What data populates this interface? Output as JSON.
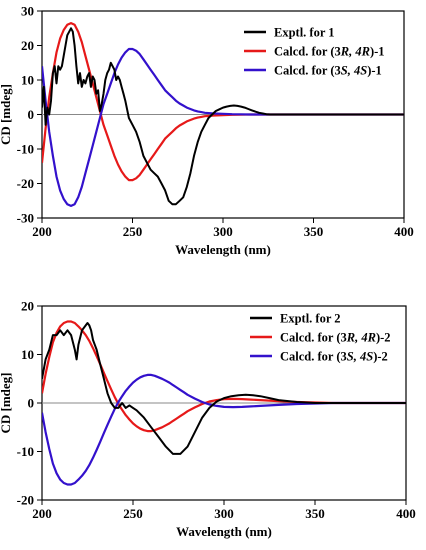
{
  "chart_data": [
    {
      "type": "line",
      "xlabel": "Wavelength (nm)",
      "ylabel": "CD [mdeg]",
      "xlim": [
        200,
        400
      ],
      "ylim": [
        -30,
        30
      ],
      "xticks": [
        "200",
        "250",
        "300",
        "350",
        "400"
      ],
      "yticks": [
        "30",
        "20",
        "10",
        "0",
        "-10",
        "-20",
        "-30"
      ],
      "legend_position": "top-right",
      "legend": [
        {
          "prefix": "Exptl. for 1",
          "iso": "",
          "suffix": ""
        },
        {
          "prefix": "Calcd. for (3",
          "iso": "R, 4R",
          "suffix": ")-1"
        },
        {
          "prefix": "Calcd. for (3",
          "iso": "S, 4S",
          "suffix": ")-1"
        }
      ],
      "series": [
        {
          "name": "Exptl. for 1",
          "color": "#000000",
          "x": [
            200,
            201,
            202,
            203,
            204,
            205,
            206,
            207,
            208,
            209,
            210,
            211,
            212,
            213,
            214,
            215,
            216,
            217,
            218,
            219,
            220,
            221,
            222,
            223,
            224,
            225,
            226,
            227,
            228,
            229,
            230,
            231,
            232,
            233,
            234,
            235,
            236,
            237,
            238,
            239,
            240,
            241,
            242,
            243,
            244,
            245,
            246,
            248,
            250,
            252,
            254,
            256,
            258,
            260,
            262,
            264,
            266,
            268,
            270,
            272,
            274,
            276,
            278,
            280,
            282,
            284,
            286,
            288,
            290,
            292,
            294,
            296,
            298,
            300,
            302,
            304,
            306,
            308,
            310,
            312,
            314,
            316,
            318,
            320,
            322,
            324,
            326,
            330,
            340,
            350,
            360,
            370,
            380,
            390,
            400
          ],
          "y": [
            2,
            8,
            -3,
            2,
            0,
            4,
            12,
            14,
            9,
            14,
            13,
            14,
            17,
            20,
            23,
            24,
            25,
            24,
            20,
            14,
            9,
            12,
            8,
            10,
            9,
            11,
            12,
            8,
            11,
            10,
            6,
            7,
            1,
            3,
            6,
            10,
            12,
            13,
            15,
            14,
            13,
            10,
            11,
            10,
            8,
            6,
            4,
            -1,
            -3,
            -5,
            -8,
            -12,
            -14,
            -16,
            -17,
            -18,
            -20,
            -22,
            -25,
            -26,
            -26,
            -25,
            -24,
            -21,
            -17,
            -12,
            -8,
            -5,
            -3,
            -1,
            0,
            1,
            1.5,
            2,
            2.3,
            2.5,
            2.6,
            2.5,
            2.3,
            2,
            1.6,
            1.2,
            0.8,
            0.5,
            0.3,
            0.1,
            0,
            0,
            0,
            0,
            0,
            0,
            0,
            0,
            0
          ]
        },
        {
          "name": "Calcd. for (3R, 4R)-1",
          "color": "#e61919",
          "x": [
            200,
            202,
            204,
            206,
            208,
            210,
            212,
            214,
            216,
            218,
            220,
            222,
            224,
            226,
            228,
            230,
            232,
            234,
            236,
            238,
            240,
            242,
            244,
            246,
            248,
            250,
            252,
            254,
            256,
            258,
            260,
            262,
            264,
            266,
            268,
            270,
            272,
            274,
            276,
            278,
            280,
            282,
            284,
            286,
            288,
            290,
            295,
            300,
            305,
            310,
            315,
            320,
            330,
            340,
            350,
            360,
            380,
            400
          ],
          "y": [
            -14,
            -4,
            5,
            12,
            18,
            22,
            24.5,
            26,
            26.5,
            26,
            24,
            21,
            17,
            13,
            9,
            5,
            1,
            -3,
            -6,
            -9,
            -12,
            -14.5,
            -16.5,
            -18,
            -19,
            -19,
            -18.5,
            -17.5,
            -16,
            -14.5,
            -13,
            -11.5,
            -10,
            -8.5,
            -7,
            -6,
            -5,
            -4,
            -3.2,
            -2.6,
            -2,
            -1.6,
            -1.2,
            -0.9,
            -0.7,
            -0.5,
            -0.3,
            -0.2,
            -0.1,
            -0.05,
            0,
            0,
            0,
            0,
            0,
            0,
            0,
            0
          ]
        },
        {
          "name": "Calcd. for (3S, 4S)-1",
          "color": "#3311cc",
          "x": [
            200,
            202,
            204,
            206,
            208,
            210,
            212,
            214,
            216,
            218,
            220,
            222,
            224,
            226,
            228,
            230,
            232,
            234,
            236,
            238,
            240,
            242,
            244,
            246,
            248,
            250,
            252,
            254,
            256,
            258,
            260,
            262,
            264,
            266,
            268,
            270,
            272,
            274,
            276,
            278,
            280,
            282,
            284,
            286,
            288,
            290,
            295,
            300,
            305,
            310,
            315,
            320,
            330,
            340,
            350,
            360,
            380,
            400
          ],
          "y": [
            14,
            4,
            -5,
            -12,
            -18,
            -22,
            -24.5,
            -26,
            -26.5,
            -26,
            -24,
            -21,
            -17,
            -13,
            -9,
            -5,
            -1,
            3,
            6,
            9,
            12,
            14.5,
            16.5,
            18,
            19,
            19,
            18.5,
            17.5,
            16,
            14.5,
            13,
            11.5,
            10,
            8.5,
            7,
            6,
            5,
            4,
            3.2,
            2.6,
            2,
            1.6,
            1.2,
            0.9,
            0.7,
            0.5,
            0.3,
            0.2,
            0.1,
            0.05,
            0,
            0,
            0,
            0,
            0,
            0,
            0,
            0
          ]
        }
      ]
    },
    {
      "type": "line",
      "xlabel": "Wavelength (nm)",
      "ylabel": "CD [mdeg]",
      "xlim": [
        200,
        400
      ],
      "ylim": [
        -20,
        20
      ],
      "xticks": [
        "200",
        "250",
        "300",
        "350",
        "400"
      ],
      "yticks": [
        "20",
        "10",
        "0",
        "-10",
        "-20"
      ],
      "legend_position": "top-right",
      "legend": [
        {
          "prefix": "Exptl. for 2",
          "iso": "",
          "suffix": ""
        },
        {
          "prefix": "Calcd. for (3",
          "iso": "R, 4R",
          "suffix": ")-2"
        },
        {
          "prefix": "Calcd. for (3",
          "iso": "S, 4S",
          "suffix": ")-2"
        }
      ],
      "series": [
        {
          "name": "Exptl. for 2",
          "color": "#000000",
          "x": [
            200,
            202,
            204,
            206,
            208,
            210,
            212,
            214,
            216,
            218,
            219,
            220,
            222,
            224,
            225,
            226,
            227,
            228,
            229,
            230,
            232,
            234,
            236,
            238,
            240,
            242,
            244,
            246,
            248,
            250,
            252,
            256,
            260,
            264,
            268,
            272,
            276,
            280,
            284,
            288,
            292,
            296,
            300,
            304,
            308,
            312,
            316,
            320,
            325,
            330,
            340,
            350,
            360,
            380,
            400
          ],
          "y": [
            5,
            9,
            11,
            14,
            14,
            15,
            14,
            15,
            14,
            11,
            9,
            12,
            15,
            16,
            16.5,
            16,
            15,
            13,
            12,
            11,
            8,
            5,
            2,
            0,
            -1,
            -1,
            0,
            -1,
            -0.5,
            -1,
            -1.5,
            -3,
            -5,
            -7,
            -9,
            -10.5,
            -10.5,
            -9,
            -6,
            -3,
            -1,
            0.3,
            1,
            1.4,
            1.6,
            1.7,
            1.6,
            1.4,
            1,
            0.6,
            0.2,
            0,
            0,
            0,
            0
          ]
        },
        {
          "name": "Calcd. for (3R, 4R)-2",
          "color": "#e61919",
          "x": [
            200,
            202,
            204,
            206,
            208,
            210,
            212,
            214,
            216,
            218,
            220,
            222,
            224,
            226,
            228,
            230,
            232,
            234,
            236,
            238,
            240,
            242,
            244,
            246,
            248,
            250,
            252,
            254,
            256,
            258,
            260,
            262,
            264,
            266,
            268,
            270,
            272,
            274,
            276,
            278,
            280,
            284,
            288,
            292,
            296,
            300,
            305,
            310,
            315,
            320,
            330,
            340,
            350,
            360,
            380,
            400
          ],
          "y": [
            2,
            6,
            9.5,
            12.5,
            14.5,
            15.8,
            16.5,
            16.8,
            16.8,
            16.5,
            15.8,
            15,
            14,
            12.8,
            11.3,
            9.7,
            8,
            6.2,
            4.5,
            2.8,
            1.2,
            -0.2,
            -1.4,
            -2.5,
            -3.4,
            -4.2,
            -4.8,
            -5.3,
            -5.6,
            -5.8,
            -5.8,
            -5.6,
            -5.3,
            -5,
            -4.6,
            -4.2,
            -3.7,
            -3.2,
            -2.7,
            -2.2,
            -1.7,
            -0.9,
            -0.2,
            0.3,
            0.6,
            0.8,
            0.85,
            0.8,
            0.7,
            0.6,
            0.4,
            0.2,
            0.1,
            0,
            0,
            0
          ]
        },
        {
          "name": "Calcd. for (3S, 4S)-2",
          "color": "#3311cc",
          "x": [
            200,
            202,
            204,
            206,
            208,
            210,
            212,
            214,
            216,
            218,
            220,
            222,
            224,
            226,
            228,
            230,
            232,
            234,
            236,
            238,
            240,
            242,
            244,
            246,
            248,
            250,
            252,
            254,
            256,
            258,
            260,
            262,
            264,
            266,
            268,
            270,
            272,
            274,
            276,
            278,
            280,
            284,
            288,
            292,
            296,
            300,
            305,
            310,
            315,
            320,
            330,
            340,
            350,
            360,
            380,
            400
          ],
          "y": [
            -2,
            -6,
            -9.5,
            -12.5,
            -14.5,
            -15.8,
            -16.5,
            -16.8,
            -16.8,
            -16.5,
            -15.8,
            -15,
            -14,
            -12.8,
            -11.3,
            -9.7,
            -8,
            -6.2,
            -4.5,
            -2.8,
            -1.2,
            0.2,
            1.4,
            2.5,
            3.4,
            4.2,
            4.8,
            5.3,
            5.6,
            5.8,
            5.8,
            5.6,
            5.3,
            5,
            4.6,
            4.2,
            3.7,
            3.2,
            2.7,
            2.2,
            1.7,
            0.9,
            0.2,
            -0.3,
            -0.6,
            -0.8,
            -0.85,
            -0.8,
            -0.7,
            -0.6,
            -0.4,
            -0.2,
            -0.1,
            0,
            0,
            0
          ]
        }
      ]
    }
  ]
}
